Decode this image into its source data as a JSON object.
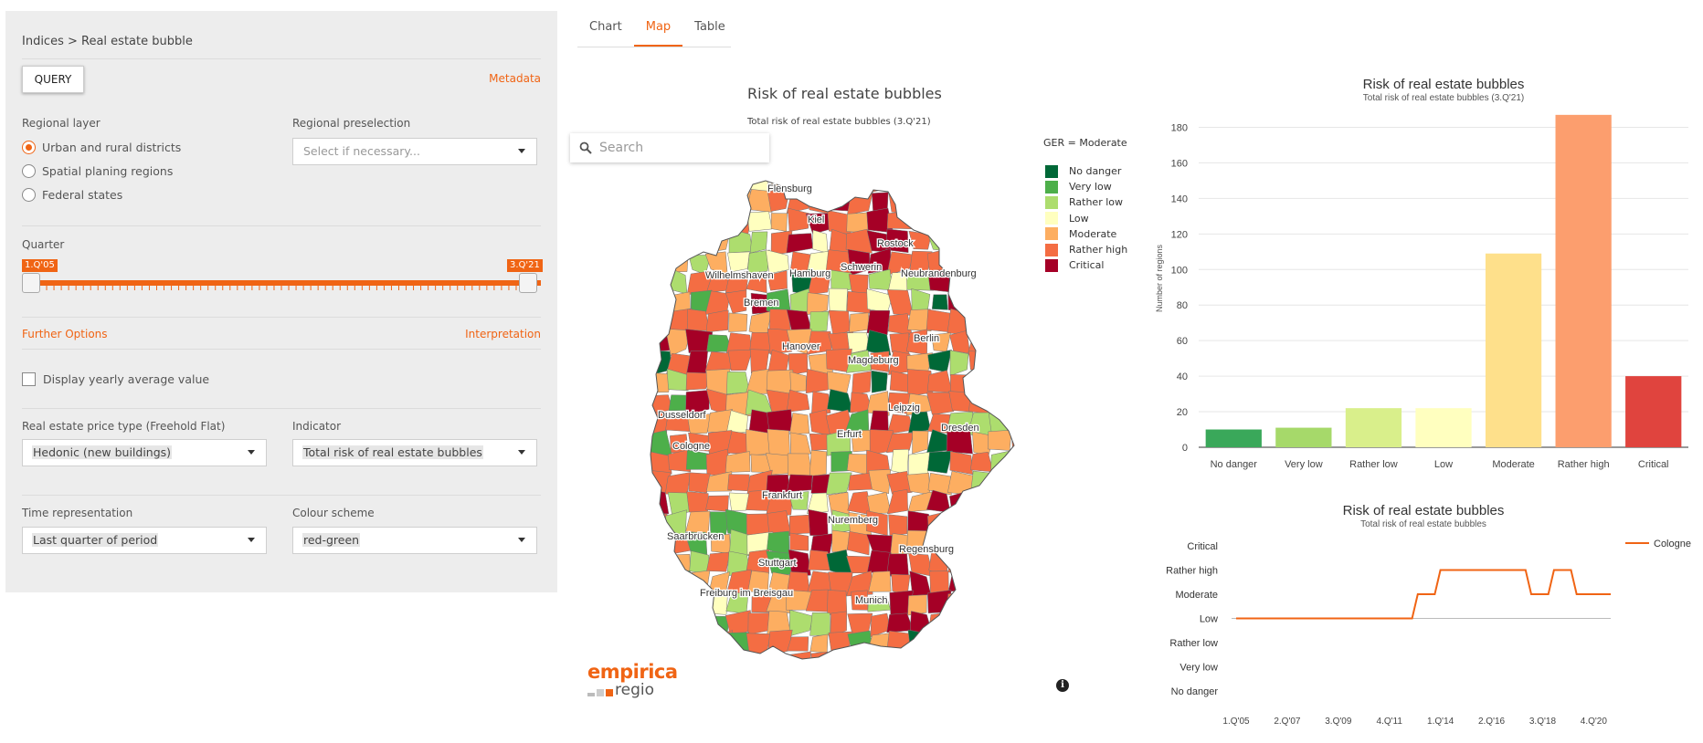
{
  "sidebar": {
    "breadcrumb": "Indices > Real estate bubble",
    "query_label": "QUERY",
    "metadata_label": "Metadata",
    "regional_layer": {
      "label": "Regional layer",
      "options": [
        "Urban and rural districts",
        "Spatial planing regions",
        "Federal states"
      ],
      "selected": "Urban and rural districts"
    },
    "regional_preselection": {
      "label": "Regional preselection",
      "placeholder": "Select if necessary..."
    },
    "quarter": {
      "label": "Quarter",
      "start": "1.Q'05",
      "end": "3.Q'21"
    },
    "further_options_label": "Further Options",
    "interpretation_label": "Interpretation",
    "yearly_average_label": "Display yearly average value",
    "price_type": {
      "label": "Real estate price type (Freehold Flat)",
      "value": "Hedonic (new buildings)"
    },
    "indicator": {
      "label": "Indicator",
      "value": "Total risk of real estate bubbles"
    },
    "time_representation": {
      "label": "Time representation",
      "value": "Last quarter of period"
    },
    "colour_scheme": {
      "label": "Colour scheme",
      "value": "red-green"
    }
  },
  "tabs": [
    {
      "label": "Chart",
      "active": false
    },
    {
      "label": "Map",
      "active": true
    },
    {
      "label": "Table",
      "active": false
    }
  ],
  "map": {
    "title": "Risk of real estate bubbles",
    "subtitle": "Total risk of real estate bubbles (3.Q'21)",
    "search_placeholder": "Search",
    "legend_title": "GER = Moderate",
    "legend": [
      {
        "label": "No danger",
        "color": "#006837"
      },
      {
        "label": "Very low",
        "color": "#4daf4a"
      },
      {
        "label": "Rather low",
        "color": "#addd6e"
      },
      {
        "label": "Low",
        "color": "#ffffbf"
      },
      {
        "label": "Moderate",
        "color": "#fdae61"
      },
      {
        "label": "Rather high",
        "color": "#f46d43"
      },
      {
        "label": "Critical",
        "color": "#a50026"
      }
    ],
    "cities": [
      "Flensburg",
      "Kiel",
      "Rostock",
      "Wilhelmshaven",
      "Hamburg",
      "Schwerin",
      "Neubrandenburg",
      "Bremen",
      "Berlin",
      "Hanover",
      "Magdeburg",
      "Dusseldorf",
      "Leipzig",
      "Dresden",
      "Cologne",
      "Erfurt",
      "Frankfurt",
      "Nuremberg",
      "Saarbrücken",
      "Regensburg",
      "Stuttgart",
      "Freiburg im Breisgau",
      "Munich"
    ],
    "logo_top": "empirica",
    "logo_bottom": "regio",
    "info_label": "i"
  },
  "chart_data": [
    {
      "type": "bar",
      "title": "Risk of real estate bubbles",
      "subtitle": "Total risk of real estate bubbles (3.Q'21)",
      "ylabel": "Number of regions",
      "categories": [
        "No danger",
        "Very low",
        "Rather low",
        "Low",
        "Moderate",
        "Rather high",
        "Critical"
      ],
      "values": [
        10,
        11,
        22,
        22,
        109,
        187,
        40
      ],
      "colors": [
        "#3aa85a",
        "#a6d96a",
        "#d9ef8b",
        "#ffffbf",
        "#fee08b",
        "#fc9e6e",
        "#e0443e"
      ],
      "yticks": [
        0,
        20,
        40,
        60,
        80,
        100,
        120,
        140,
        160,
        180
      ],
      "ylim": [
        0,
        190
      ]
    },
    {
      "type": "line",
      "title": "Risk of real estate bubbles",
      "subtitle": "Total risk of real estate bubbles",
      "levels": [
        "No danger",
        "Very low",
        "Rather low",
        "Low",
        "Moderate",
        "Rather high",
        "Critical"
      ],
      "xticks": [
        "1.Q'05",
        "2.Q'07",
        "3.Q'09",
        "4.Q'11",
        "1.Q'14",
        "2.Q'16",
        "3.Q'18",
        "4.Q'20"
      ],
      "series": [
        {
          "name": "Cologne",
          "color": "#f06414",
          "x": [
            "1.Q'05",
            "4.Q'12",
            "1.Q'13",
            "4.Q'13",
            "1.Q'14",
            "4.Q'17",
            "1.Q'18",
            "4.Q'18",
            "1.Q'19",
            "4.Q'19",
            "1.Q'20",
            "3.Q'21"
          ],
          "values": [
            "Low",
            "Low",
            "Moderate",
            "Moderate",
            "Rather high",
            "Rather high",
            "Moderate",
            "Moderate",
            "Rather high",
            "Rather high",
            "Moderate",
            "Moderate"
          ]
        }
      ]
    }
  ]
}
